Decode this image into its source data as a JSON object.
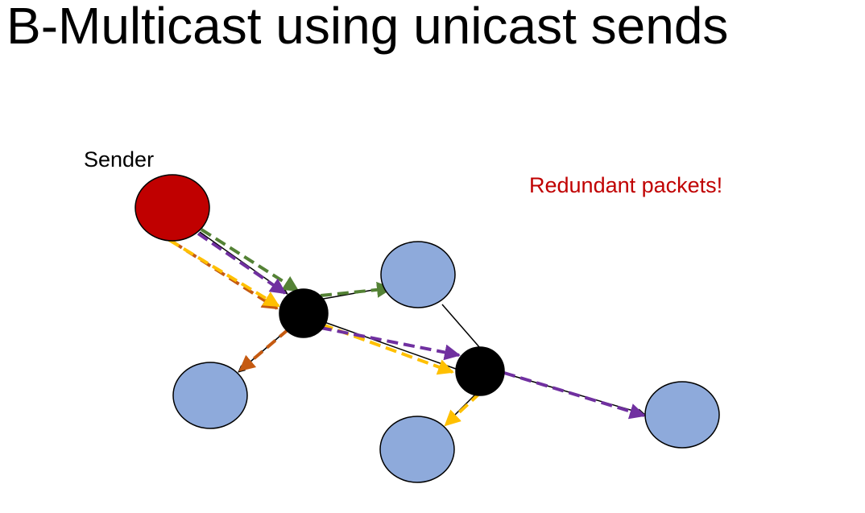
{
  "title": "B-Multicast using unicast sends",
  "sender_label": "Sender",
  "note": "Redundant packets!",
  "colors": {
    "sender": "#c00000",
    "router": "#000000",
    "host": "#8eaadb",
    "link": "#000000",
    "note": "#c00000",
    "path_green": "#548235",
    "path_orange": "#c55a11",
    "path_gold": "#ffc000",
    "path_purple": "#7030a0"
  },
  "diagram": {
    "nodes": [
      {
        "id": "sender",
        "role": "sender"
      },
      {
        "id": "router-a",
        "role": "router"
      },
      {
        "id": "router-b",
        "role": "router"
      },
      {
        "id": "host-top",
        "role": "receiver"
      },
      {
        "id": "host-left",
        "role": "receiver"
      },
      {
        "id": "host-bottom",
        "role": "receiver"
      },
      {
        "id": "host-right",
        "role": "receiver"
      }
    ],
    "links": [
      [
        "sender",
        "router-a"
      ],
      [
        "router-a",
        "host-top"
      ],
      [
        "router-a",
        "host-left"
      ],
      [
        "router-a",
        "router-b"
      ],
      [
        "host-top",
        "router-b"
      ],
      [
        "router-b",
        "host-bottom"
      ],
      [
        "router-b",
        "host-right"
      ]
    ],
    "unicast_paths": [
      {
        "color": "path_green",
        "route": [
          "sender",
          "router-a",
          "host-top"
        ]
      },
      {
        "color": "path_orange",
        "route": [
          "sender",
          "router-a",
          "host-left"
        ]
      },
      {
        "color": "path_gold",
        "route": [
          "sender",
          "router-a",
          "router-b",
          "host-bottom"
        ]
      },
      {
        "color": "path_purple",
        "route": [
          "sender",
          "router-a",
          "router-b",
          "host-right"
        ]
      }
    ]
  }
}
